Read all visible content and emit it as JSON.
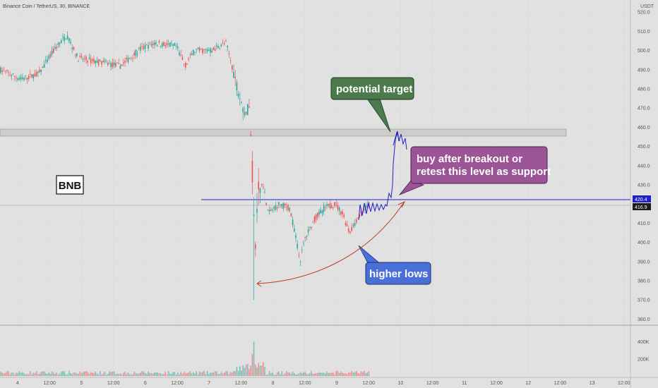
{
  "header": {
    "title": "Binance Coin / TetherUS, 30, BINANCE"
  },
  "price_axis": {
    "unit": "USDT",
    "labels": [
      "520.0",
      "510.0",
      "500.0",
      "490.0",
      "480.0",
      "470.0",
      "460.0",
      "450.0",
      "440.0",
      "430.0",
      "410.0",
      "400.0",
      "390.0",
      "380.0",
      "370.0",
      "360.0"
    ],
    "values": [
      520,
      510,
      500,
      490,
      480,
      470,
      460,
      450,
      440,
      430,
      410,
      400,
      390,
      380,
      370,
      360
    ],
    "badge_blue": "420.4",
    "badge_dark": "416.9"
  },
  "volume_axis": {
    "labels": [
      "400K",
      "200K"
    ],
    "values": [
      400000,
      200000
    ]
  },
  "time_axis": {
    "labels": [
      "4",
      "12:00",
      "5",
      "12:00",
      "6",
      "12:00",
      "7",
      "12:00",
      "8",
      "12:00",
      "9",
      "12:00",
      "10",
      "12:00",
      "11",
      "12:00",
      "12",
      "12:00",
      "13",
      "12:00"
    ]
  },
  "symbol_label": "BNB",
  "annotations": {
    "potential_target": "potential target",
    "buy_line1": "buy after breakout or",
    "buy_line2": "retest this level as support",
    "higher_lows": "higher lows"
  },
  "colors": {
    "background": "#e1e1e1",
    "up": "#26a69a",
    "down": "#ef5350",
    "resistance_line": "#1e22c8",
    "drawing_blue": "#1e22c8",
    "curve": "#c0392b",
    "target_box": "#4d7a4d",
    "buy_box": "#9b5596",
    "lows_box": "#4a6fd8"
  },
  "chart_data": {
    "type": "candlestick",
    "title": "Binance Coin / TetherUS, 30, BINANCE",
    "y_unit": "USDT",
    "ylim": [
      355,
      523
    ],
    "resistance_level": 420.4,
    "last_price": 416.9,
    "zone": [
      455,
      459
    ],
    "x_labels": [
      "4",
      "12:00",
      "5",
      "12:00",
      "6",
      "12:00",
      "7",
      "12:00",
      "8",
      "12:00",
      "9",
      "12:00",
      "10",
      "12:00",
      "11",
      "12:00",
      "12",
      "12:00",
      "13",
      "12:00"
    ],
    "price_path": [
      [
        0,
        490
      ],
      [
        30,
        485
      ],
      [
        55,
        488
      ],
      [
        80,
        502
      ],
      [
        95,
        508
      ],
      [
        110,
        496
      ],
      [
        140,
        494
      ],
      [
        170,
        492
      ],
      [
        200,
        501
      ],
      [
        220,
        504
      ],
      [
        250,
        502
      ],
      [
        262,
        492
      ],
      [
        275,
        500
      ],
      [
        300,
        500
      ],
      [
        320,
        504
      ],
      [
        330,
        490
      ],
      [
        338,
        478
      ],
      [
        345,
        468
      ],
      [
        354,
        470
      ],
      [
        358,
        430
      ],
      [
        361,
        395
      ],
      [
        366,
        425
      ],
      [
        372,
        432
      ],
      [
        380,
        415
      ],
      [
        395,
        420
      ],
      [
        410,
        418
      ],
      [
        418,
        405
      ],
      [
        425,
        390
      ],
      [
        432,
        402
      ],
      [
        445,
        412
      ],
      [
        460,
        418
      ],
      [
        475,
        420
      ],
      [
        485,
        415
      ],
      [
        495,
        405
      ],
      [
        505,
        412
      ],
      [
        518,
        418
      ],
      [
        525,
        420
      ]
    ],
    "series": [
      {
        "name": "Volume",
        "type": "bar"
      }
    ]
  }
}
